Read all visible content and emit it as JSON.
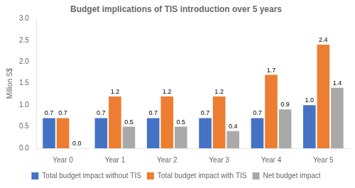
{
  "chart_data": {
    "type": "bar",
    "title": "Budget implications of TIS introduction over 5 years",
    "y_label": "Million S$",
    "categories": [
      "Year 0",
      "Year 1",
      "Year 2",
      "Year 3",
      "Year 4",
      "Year 5"
    ],
    "series": [
      {
        "name": "Total budget impact without TIS",
        "color": "#4472C4",
        "values": [
          0.7,
          0.7,
          0.7,
          0.7,
          0.7,
          1.0
        ],
        "value_labels": [
          "0.7",
          "0.7",
          "0.7",
          "0.7",
          "0.7",
          "1.0"
        ]
      },
      {
        "name": "Total budget impact with TIS",
        "color": "#ED7D31",
        "values": [
          0.7,
          1.2,
          1.2,
          1.2,
          1.7,
          2.4
        ],
        "value_labels": [
          "0.7",
          "1.2",
          "1.2",
          "1.2",
          "1.7",
          "2.4"
        ]
      },
      {
        "name": "Net budget impact",
        "color": "#A9A9A9",
        "values": [
          0.0,
          0.5,
          0.5,
          0.4,
          0.9,
          1.4
        ],
        "value_labels": [
          "0.0",
          "0.5",
          "0.5",
          "0.4",
          "0.9",
          "1.4"
        ]
      }
    ],
    "ylim": [
      0,
      3.0
    ],
    "yticks": [
      {
        "value": 0,
        "label": "0.0"
      },
      0.5,
      {
        "value": 1,
        "label": "1.0"
      },
      1.5,
      {
        "value": 2,
        "label": "2.0"
      },
      2.5,
      {
        "value": 3,
        "label": "3.0"
      }
    ],
    "grid": false,
    "legend": "bottom",
    "data_labels": true
  }
}
